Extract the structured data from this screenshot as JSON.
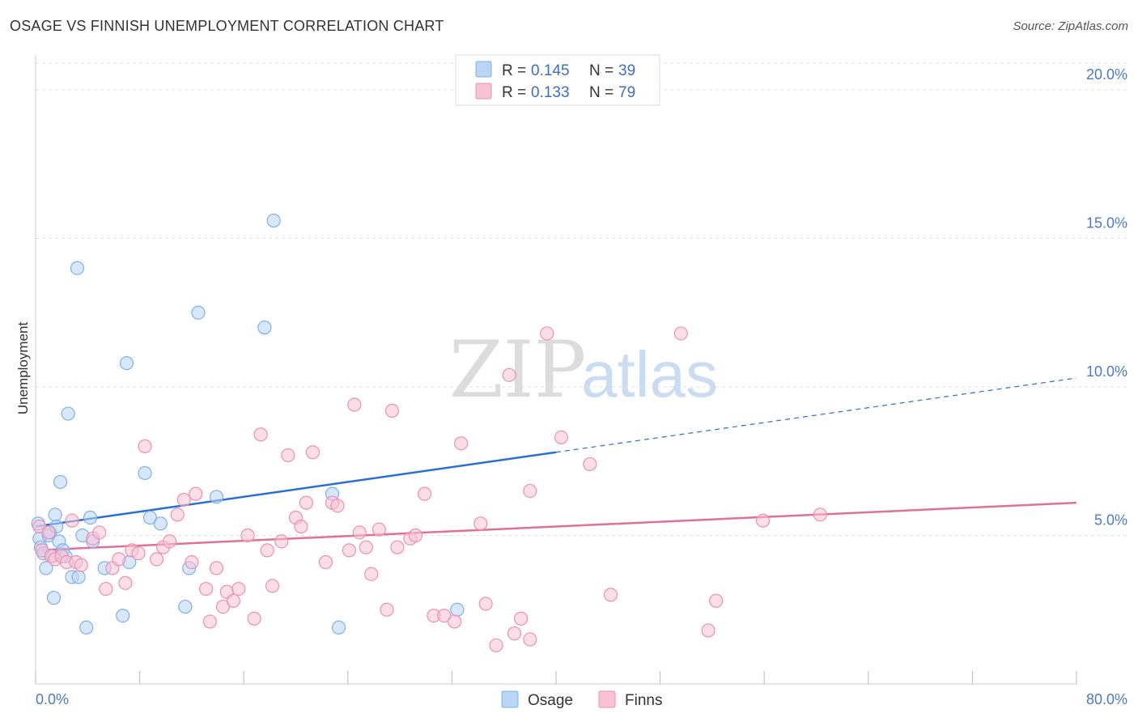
{
  "title": "OSAGE VS FINNISH UNEMPLOYMENT CORRELATION CHART",
  "source": "Source: ZipAtlas.com",
  "watermark": {
    "zip": "ZIP",
    "atlas": "atlas"
  },
  "colors": {
    "osage": "#7fb0e8",
    "osage_fill": "#b9d4f5",
    "osage_line": "#2a6fd0",
    "finns": "#ee8fb0",
    "finns_fill": "#f7c3d5",
    "finns_line": "#e0709a",
    "grid": "#e2e2e2",
    "axis_text": "#4a7bc8"
  },
  "legend": {
    "rows": [
      {
        "r_label": "R = ",
        "r_value": "0.145",
        "n_label": "N = ",
        "n_value": "39"
      },
      {
        "r_label": "R = ",
        "r_value": "0.133",
        "n_label": "N = ",
        "n_value": "79"
      }
    ]
  },
  "bottom_legend": [
    "Osage",
    "Finns"
  ],
  "chart_data": {
    "type": "scatter",
    "title": "OSAGE VS FINNISH UNEMPLOYMENT CORRELATION CHART",
    "xlabel": "",
    "ylabel": "Unemployment",
    "xlim": [
      0,
      80
    ],
    "ylim": [
      0,
      20.9
    ],
    "x_tick_labels": [
      "0.0%",
      "80.0%"
    ],
    "y_ticks": [
      5,
      10,
      15,
      20
    ],
    "y_tick_labels": [
      "5.0%",
      "10.0%",
      "15.0%",
      "20.0%"
    ],
    "grid": true,
    "legend_position": "top-center",
    "series": [
      {
        "name": "Osage",
        "r": 0.145,
        "n": 39,
        "trend": {
          "x0": 0,
          "y0": 5.3,
          "x1": 40,
          "y1": 7.8,
          "dashed_to_x": 80,
          "dashed_to_y": 10.3
        },
        "points": [
          [
            0.2,
            5.4
          ],
          [
            0.3,
            4.9
          ],
          [
            0.4,
            4.6
          ],
          [
            0.6,
            4.4
          ],
          [
            0.8,
            3.9
          ],
          [
            1.0,
            5.0
          ],
          [
            1.1,
            5.1
          ],
          [
            1.3,
            4.3
          ],
          [
            1.4,
            2.9
          ],
          [
            1.5,
            5.7
          ],
          [
            1.6,
            5.3
          ],
          [
            1.8,
            4.8
          ],
          [
            1.9,
            6.8
          ],
          [
            2.1,
            4.5
          ],
          [
            2.3,
            4.3
          ],
          [
            2.5,
            9.1
          ],
          [
            2.8,
            3.6
          ],
          [
            3.2,
            14.0
          ],
          [
            3.3,
            3.6
          ],
          [
            3.6,
            5.0
          ],
          [
            3.9,
            1.9
          ],
          [
            4.2,
            5.6
          ],
          [
            4.4,
            4.8
          ],
          [
            5.3,
            3.9
          ],
          [
            6.7,
            2.3
          ],
          [
            7.0,
            10.8
          ],
          [
            7.2,
            4.1
          ],
          [
            8.4,
            7.1
          ],
          [
            8.8,
            5.6
          ],
          [
            9.6,
            5.4
          ],
          [
            11.5,
            2.6
          ],
          [
            11.8,
            3.9
          ],
          [
            12.5,
            12.5
          ],
          [
            13.9,
            6.3
          ],
          [
            17.6,
            12.0
          ],
          [
            18.3,
            15.6
          ],
          [
            22.8,
            6.4
          ],
          [
            23.3,
            1.9
          ],
          [
            32.4,
            2.5
          ]
        ]
      },
      {
        "name": "Finns",
        "r": 0.133,
        "n": 79,
        "trend": {
          "x0": 0,
          "y0": 4.5,
          "x1": 80,
          "y1": 6.1
        },
        "points": [
          [
            0.3,
            5.3
          ],
          [
            0.5,
            4.5
          ],
          [
            1.0,
            5.1
          ],
          [
            1.2,
            4.3
          ],
          [
            1.5,
            4.2
          ],
          [
            2.0,
            4.3
          ],
          [
            2.4,
            4.1
          ],
          [
            2.8,
            5.5
          ],
          [
            3.1,
            4.1
          ],
          [
            3.5,
            4.0
          ],
          [
            4.4,
            4.9
          ],
          [
            4.9,
            5.1
          ],
          [
            5.4,
            3.2
          ],
          [
            5.9,
            3.9
          ],
          [
            6.4,
            4.2
          ],
          [
            6.9,
            3.4
          ],
          [
            7.4,
            4.5
          ],
          [
            7.9,
            4.4
          ],
          [
            8.4,
            8.0
          ],
          [
            9.3,
            4.2
          ],
          [
            9.8,
            4.6
          ],
          [
            10.3,
            4.8
          ],
          [
            10.9,
            5.7
          ],
          [
            11.4,
            6.2
          ],
          [
            12.0,
            4.1
          ],
          [
            12.3,
            6.4
          ],
          [
            13.1,
            3.2
          ],
          [
            13.4,
            2.1
          ],
          [
            13.9,
            3.9
          ],
          [
            14.4,
            2.6
          ],
          [
            14.7,
            3.1
          ],
          [
            15.2,
            2.8
          ],
          [
            15.6,
            3.2
          ],
          [
            16.3,
            5.0
          ],
          [
            16.8,
            2.2
          ],
          [
            17.3,
            8.4
          ],
          [
            17.8,
            4.5
          ],
          [
            18.2,
            3.3
          ],
          [
            18.9,
            4.8
          ],
          [
            19.4,
            7.7
          ],
          [
            20.0,
            5.6
          ],
          [
            20.4,
            5.3
          ],
          [
            20.8,
            6.1
          ],
          [
            21.3,
            7.8
          ],
          [
            22.3,
            4.1
          ],
          [
            22.8,
            6.1
          ],
          [
            23.2,
            6.0
          ],
          [
            24.1,
            4.5
          ],
          [
            24.5,
            9.4
          ],
          [
            24.9,
            5.1
          ],
          [
            25.4,
            4.6
          ],
          [
            25.8,
            3.7
          ],
          [
            26.4,
            5.2
          ],
          [
            27.0,
            2.5
          ],
          [
            27.4,
            9.2
          ],
          [
            27.8,
            4.6
          ],
          [
            28.8,
            4.9
          ],
          [
            29.2,
            5.0
          ],
          [
            29.9,
            6.4
          ],
          [
            30.6,
            2.3
          ],
          [
            31.4,
            2.3
          ],
          [
            32.2,
            2.1
          ],
          [
            32.7,
            8.1
          ],
          [
            34.2,
            5.4
          ],
          [
            34.6,
            2.7
          ],
          [
            35.4,
            1.3
          ],
          [
            36.4,
            10.4
          ],
          [
            36.8,
            1.7
          ],
          [
            37.3,
            2.2
          ],
          [
            38.0,
            1.5
          ],
          [
            38.0,
            6.5
          ],
          [
            39.3,
            11.8
          ],
          [
            40.4,
            8.3
          ],
          [
            42.6,
            7.4
          ],
          [
            44.2,
            3.0
          ],
          [
            49.6,
            11.8
          ],
          [
            51.7,
            1.8
          ],
          [
            52.3,
            2.8
          ],
          [
            55.9,
            5.5
          ],
          [
            60.3,
            5.7
          ]
        ]
      }
    ]
  }
}
